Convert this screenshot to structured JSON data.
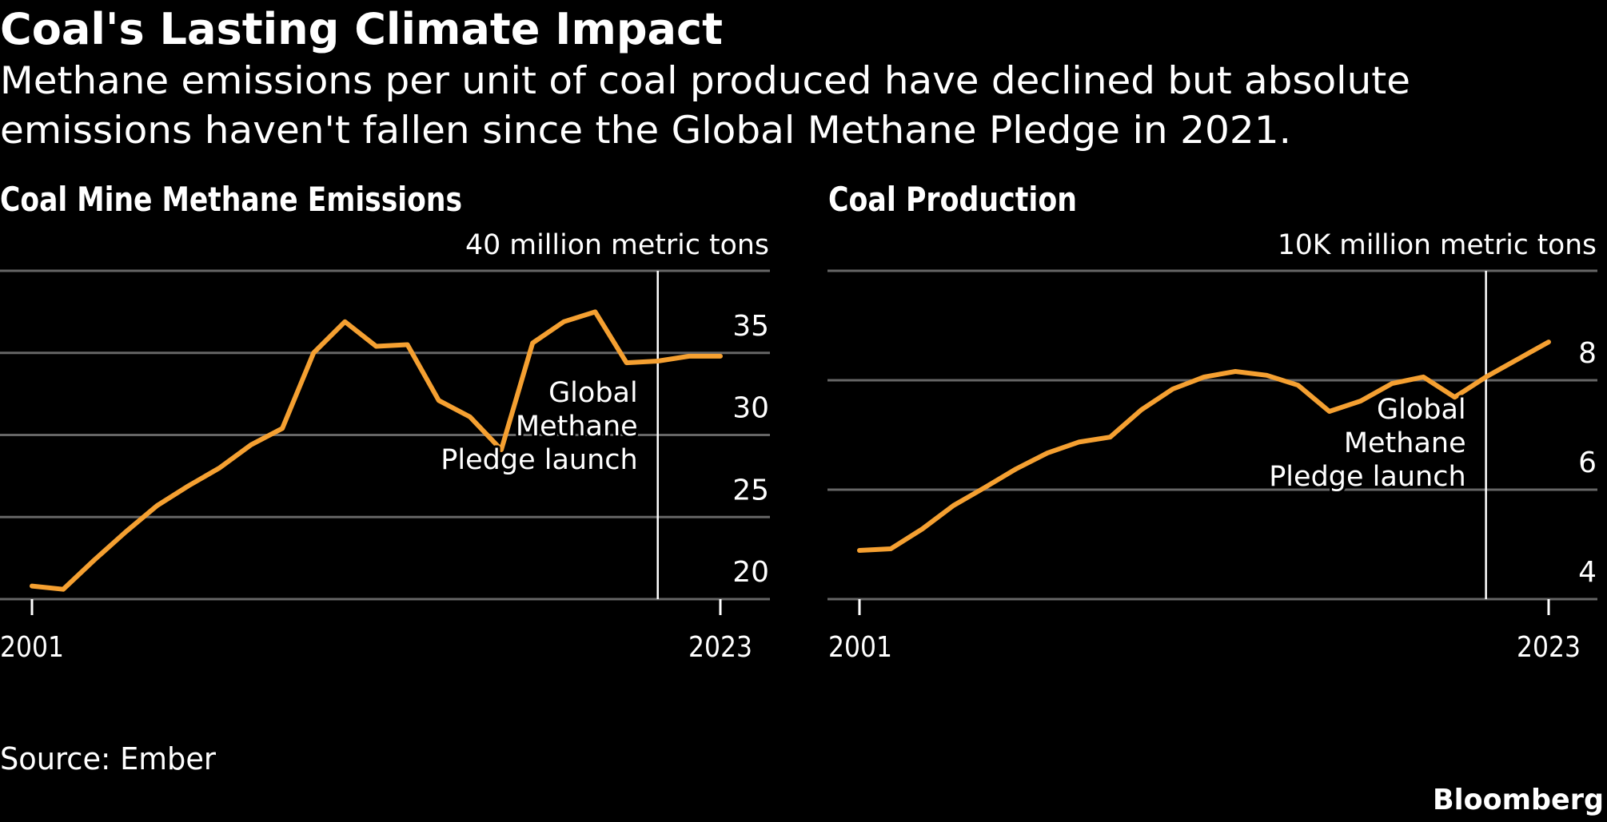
{
  "header": {
    "title": "Coal's Lasting Climate Impact",
    "subtitle_lines": [
      "Methane emissions per unit of coal produced have declined but absolute",
      "emissions haven't fallen since the Global Methane Pledge in 2021."
    ]
  },
  "footer": {
    "source": "Source: Ember",
    "brand": "Bloomberg"
  },
  "colors": {
    "background": "#000000",
    "series": "#F5A031",
    "grid": "#666666",
    "text": "#FFFFFF"
  },
  "chart_data": [
    {
      "type": "line",
      "title": "Coal Mine Methane Emissions",
      "unit_label": "40 million metric tons",
      "xlabel": "",
      "ylabel": "million metric tons",
      "x_ticks": [
        "2001",
        "2023"
      ],
      "y_ticks": [
        20,
        25,
        30,
        35
      ],
      "y_gridlines": [
        20,
        25,
        30,
        35,
        40
      ],
      "ylim": [
        20,
        40
      ],
      "xlim": [
        2001,
        2023
      ],
      "grid": true,
      "y_axis_position": "right",
      "x": [
        2001,
        2002,
        2003,
        2004,
        2005,
        2006,
        2007,
        2008,
        2009,
        2010,
        2011,
        2012,
        2013,
        2014,
        2015,
        2016,
        2017,
        2018,
        2019,
        2020,
        2021,
        2022,
        2023
      ],
      "series": [
        {
          "name": "Coal mine methane emissions",
          "values": [
            20.8,
            20.6,
            22.4,
            24.1,
            25.7,
            26.9,
            28.0,
            29.4,
            30.4,
            35.0,
            36.9,
            35.4,
            35.5,
            32.1,
            31.1,
            29.1,
            35.6,
            36.9,
            37.5,
            34.4,
            34.5,
            34.8,
            34.8
          ]
        }
      ],
      "annotations": [
        {
          "x": 2021,
          "type": "vertical-line",
          "lines": [
            "Global",
            "Methane",
            "Pledge launch"
          ]
        }
      ]
    },
    {
      "type": "line",
      "title": "Coal Production",
      "unit_label": "10K million metric tons",
      "xlabel": "",
      "ylabel": "million metric tons",
      "x_ticks": [
        "2001",
        "2023"
      ],
      "y_ticks": [
        4,
        6,
        8
      ],
      "y_gridlines": [
        4,
        6,
        8,
        10
      ],
      "ylim": [
        4,
        10
      ],
      "xlim": [
        2001,
        2023
      ],
      "grid": true,
      "y_axis_position": "right",
      "x": [
        2001,
        2002,
        2003,
        2004,
        2005,
        2006,
        2007,
        2008,
        2009,
        2010,
        2011,
        2012,
        2013,
        2014,
        2015,
        2016,
        2017,
        2018,
        2019,
        2020,
        2021,
        2022,
        2023
      ],
      "series": [
        {
          "name": "Coal production",
          "values": [
            4.89,
            4.92,
            5.28,
            5.71,
            6.04,
            6.38,
            6.67,
            6.87,
            6.96,
            7.46,
            7.84,
            8.06,
            8.16,
            8.09,
            7.91,
            7.43,
            7.62,
            7.94,
            8.06,
            7.69,
            8.06,
            8.38,
            8.7
          ]
        }
      ],
      "annotations": [
        {
          "x": 2021,
          "type": "vertical-line",
          "lines": [
            "Global",
            "Methane",
            "Pledge launch"
          ]
        }
      ]
    }
  ]
}
